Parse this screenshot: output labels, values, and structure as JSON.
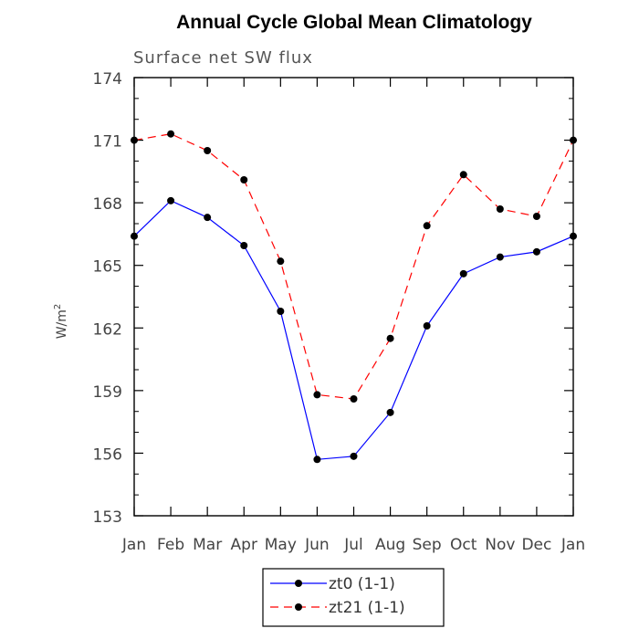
{
  "chart_data": {
    "type": "line",
    "title": "Annual Cycle Global Mean Climatology",
    "subtitle": "Surface net SW flux",
    "xlabel": "",
    "ylabel": "W/m",
    "ylabel_superscript": "2",
    "categories": [
      "Jan",
      "Feb",
      "Mar",
      "Apr",
      "May",
      "Jun",
      "Jul",
      "Aug",
      "Sep",
      "Oct",
      "Nov",
      "Dec",
      "Jan"
    ],
    "ylim": [
      153,
      174
    ],
    "yticks": [
      153,
      156,
      159,
      162,
      165,
      168,
      171,
      174
    ],
    "ytick_labels": [
      "153",
      "156",
      "159",
      "162",
      "165",
      "168",
      "171",
      "174"
    ],
    "series": [
      {
        "name": "zt0 (1-1)",
        "color": "#0000ff",
        "dashed": false,
        "values": [
          166.4,
          168.1,
          167.3,
          165.95,
          162.8,
          155.7,
          155.85,
          157.95,
          162.1,
          164.6,
          165.4,
          165.65,
          166.4
        ]
      },
      {
        "name": "zt21 (1-1)",
        "color": "#ff0000",
        "dashed": true,
        "values": [
          171.0,
          171.3,
          170.5,
          169.1,
          165.2,
          158.8,
          158.6,
          161.5,
          166.9,
          169.35,
          167.7,
          167.35,
          171.0
        ]
      }
    ],
    "legend_position": "bottom-center",
    "grid": false
  }
}
